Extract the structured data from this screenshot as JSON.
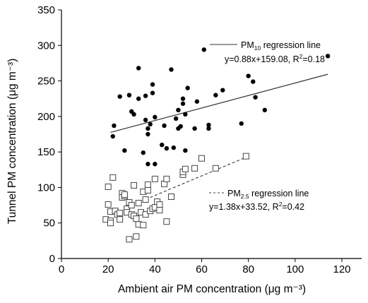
{
  "chart_data": {
    "type": "scatter",
    "xlabel": "Ambient air PM concentration (μg m⁻³)",
    "ylabel": "Tunnel PM concentration (μg m⁻³)",
    "xlim": [
      0,
      120
    ],
    "ylim": [
      0,
      350
    ],
    "xticks": [
      0,
      20,
      40,
      60,
      80,
      100,
      120
    ],
    "yticks": [
      0,
      50,
      100,
      150,
      200,
      250,
      300,
      350
    ],
    "grid": false,
    "series": [
      {
        "name": "PM10",
        "marker": "filled-circle",
        "color": "#000000",
        "points": [
          [
            22,
            172
          ],
          [
            22.5,
            187
          ],
          [
            25,
            228
          ],
          [
            27,
            152
          ],
          [
            29,
            230
          ],
          [
            30,
            207
          ],
          [
            31,
            203
          ],
          [
            33,
            268
          ],
          [
            33,
            225
          ],
          [
            35,
            149
          ],
          [
            36,
            195
          ],
          [
            36,
            229
          ],
          [
            37,
            183
          ],
          [
            37,
            175
          ],
          [
            38,
            189
          ],
          [
            39,
            245
          ],
          [
            39,
            233
          ],
          [
            40,
            199
          ],
          [
            37,
            133
          ],
          [
            40,
            133
          ],
          [
            43,
            160
          ],
          [
            44,
            187
          ],
          [
            45,
            155
          ],
          [
            47,
            266
          ],
          [
            48,
            156
          ],
          [
            49,
            197
          ],
          [
            50,
            183
          ],
          [
            50,
            209
          ],
          [
            51,
            186
          ],
          [
            52,
            218
          ],
          [
            52,
            225
          ],
          [
            53,
            152
          ],
          [
            53,
            203
          ],
          [
            54,
            240
          ],
          [
            57,
            183
          ],
          [
            58,
            221
          ],
          [
            61,
            294
          ],
          [
            63,
            188
          ],
          [
            63,
            183
          ],
          [
            66,
            230
          ],
          [
            69,
            237
          ],
          [
            77,
            190
          ],
          [
            80,
            257
          ],
          [
            82,
            249
          ],
          [
            83,
            227
          ],
          [
            87,
            209
          ],
          [
            114,
            285
          ]
        ]
      },
      {
        "name": "PM2.5",
        "marker": "open-square",
        "color": "#444444",
        "points": [
          [
            19,
            55
          ],
          [
            20,
            101
          ],
          [
            20,
            76
          ],
          [
            21,
            66
          ],
          [
            21,
            53
          ],
          [
            21,
            50
          ],
          [
            22,
            114
          ],
          [
            23,
            67
          ],
          [
            24,
            62
          ],
          [
            25,
            55
          ],
          [
            25,
            64
          ],
          [
            26,
            92
          ],
          [
            26,
            86
          ],
          [
            27,
            88
          ],
          [
            27,
            90
          ],
          [
            28,
            70
          ],
          [
            28,
            65
          ],
          [
            29,
            79
          ],
          [
            29,
            27
          ],
          [
            30,
            62
          ],
          [
            30,
            75
          ],
          [
            31,
            103
          ],
          [
            31,
            60
          ],
          [
            32,
            56
          ],
          [
            32,
            31
          ],
          [
            33,
            48
          ],
          [
            33,
            78
          ],
          [
            34,
            65
          ],
          [
            35,
            94
          ],
          [
            35,
            47
          ],
          [
            36,
            83
          ],
          [
            36,
            62
          ],
          [
            37,
            96
          ],
          [
            37,
            104
          ],
          [
            38,
            67
          ],
          [
            39,
            70
          ],
          [
            40,
            72
          ],
          [
            40,
            112
          ],
          [
            41,
            80
          ],
          [
            42,
            68
          ],
          [
            42,
            76
          ],
          [
            44,
            105
          ],
          [
            45,
            112
          ],
          [
            45,
            52
          ],
          [
            47,
            87
          ],
          [
            52,
            118
          ],
          [
            52,
            122
          ],
          [
            53,
            126
          ],
          [
            57,
            127
          ],
          [
            60,
            141
          ],
          [
            66,
            127
          ],
          [
            79,
            144
          ]
        ]
      }
    ],
    "regressions": [
      {
        "label_main": "PM",
        "label_sub": "10",
        "label_rest": " regression line",
        "equation_main": "y=0.88x+159.08, R",
        "equation_sup": "2",
        "equation_rest": "=0.18",
        "slope": 0.88,
        "intercept": 159.08,
        "x_range": [
          21,
          114
        ],
        "style": "solid",
        "color": "#333333"
      },
      {
        "label_main": "PM",
        "label_sub": "2.5",
        "label_rest": " regression line",
        "equation_main": "y=1.38x+33.52, R",
        "equation_sup": "2",
        "equation_rest": "=0.42",
        "slope": 1.38,
        "intercept": 33.52,
        "x_range": [
          36,
          79
        ],
        "style": "dashed",
        "color": "#444444"
      }
    ]
  }
}
